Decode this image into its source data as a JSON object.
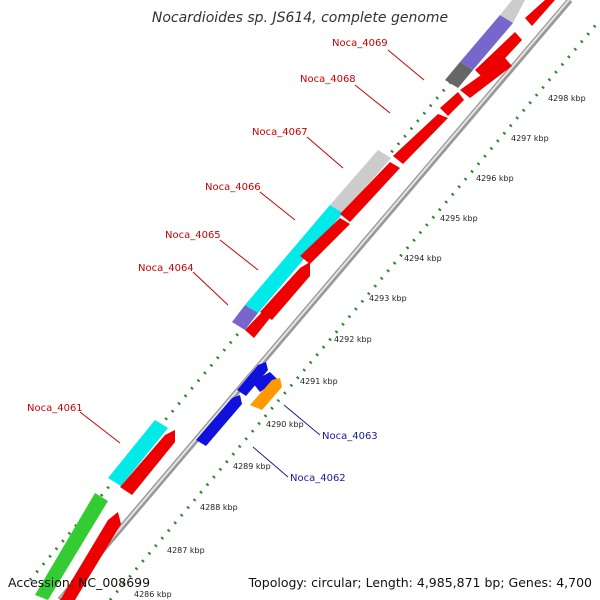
{
  "title": "Nocardioides sp. JS614, complete genome",
  "footer": {
    "accession": "Accession: NC_008699",
    "summary": "Topology: circular; Length: 4,985,871 bp; Genes: 4,700"
  },
  "colors": {
    "gene_top": "#ee0000",
    "gene_bottom": "#1111dd",
    "label_top": "#cc0000",
    "label_bottom": "#1a1a99",
    "cyan": "#00eaea",
    "green": "#33cc33",
    "purple": "#7766cc",
    "grey_light": "#cccccc",
    "grey_dark": "#666666",
    "orange": "#ff9900",
    "dots": "#2a8a2a"
  },
  "gene_labels_top": [
    "Noca_4069",
    "Noca_4068",
    "Noca_4067",
    "Noca_4066",
    "Noca_4065",
    "Noca_4064",
    "Noca_4061"
  ],
  "gene_labels_bottom": [
    "Noca_4063",
    "Noca_4062"
  ],
  "scale_labels": [
    "4298 kbp",
    "4297 kbp",
    "4296 kbp",
    "4295 kbp",
    "4294 kbp",
    "4293 kbp",
    "4292 kbp",
    "4291 kbp",
    "4290 kbp",
    "4289 kbp",
    "4288 kbp",
    "4287 kbp",
    "4286 kbp"
  ]
}
